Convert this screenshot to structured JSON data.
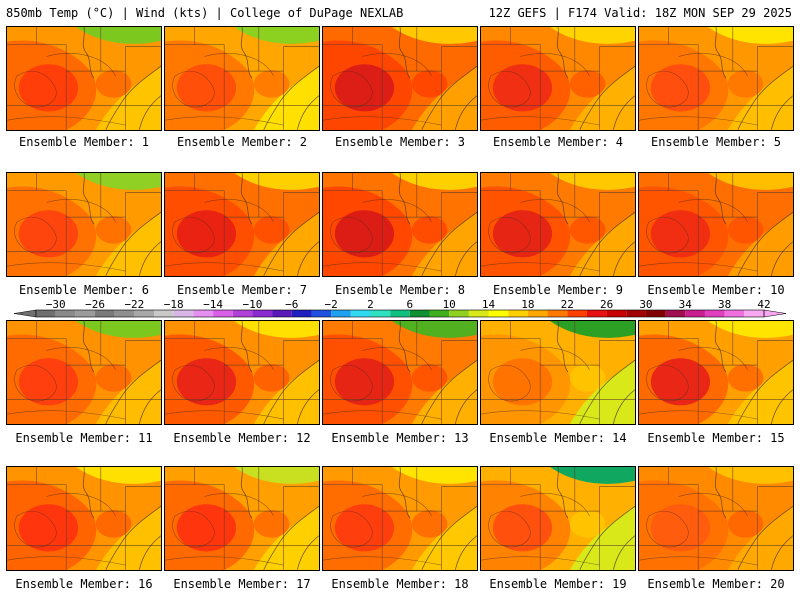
{
  "header": {
    "left": "850mb Temp (°C) | Wind (kts) | College of DuPage NEXLAB",
    "right": "12Z GEFS | F174 Valid: 18Z MON SEP 29 2025"
  },
  "colorbar": {
    "labels": [
      "−30",
      "−26",
      "−22",
      "−18",
      "−14",
      "−10",
      "−6",
      "−2",
      "2",
      "6",
      "10",
      "14",
      "18",
      "22",
      "26",
      "30",
      "34",
      "38",
      "42"
    ],
    "bins": [
      {
        "from": -32,
        "color": "#6f6f6f"
      },
      {
        "from": -30,
        "color": "#8a8a8a"
      },
      {
        "from": -28,
        "color": "#9c9c9c"
      },
      {
        "from": -26,
        "color": "#7a7a7a"
      },
      {
        "from": -24,
        "color": "#8f8f8f"
      },
      {
        "from": -22,
        "color": "#a8a8a8"
      },
      {
        "from": -20,
        "color": "#c8c8c8"
      },
      {
        "from": -18,
        "color": "#d9b8e8"
      },
      {
        "from": -16,
        "color": "#e68ff0"
      },
      {
        "from": -14,
        "color": "#d95fe8"
      },
      {
        "from": -12,
        "color": "#b040d8"
      },
      {
        "from": -10,
        "color": "#8a2ad0"
      },
      {
        "from": -8,
        "color": "#5a1ab8"
      },
      {
        "from": -6,
        "color": "#2020c0"
      },
      {
        "from": -4,
        "color": "#2050e0"
      },
      {
        "from": -2,
        "color": "#20a0f0"
      },
      {
        "from": 0,
        "color": "#30d8f0"
      },
      {
        "from": 2,
        "color": "#30e0c0"
      },
      {
        "from": 4,
        "color": "#10c080"
      },
      {
        "from": 6,
        "color": "#109030"
      },
      {
        "from": 8,
        "color": "#40b020"
      },
      {
        "from": 10,
        "color": "#90d020"
      },
      {
        "from": 12,
        "color": "#d8e818"
      },
      {
        "from": 14,
        "color": "#ffff00"
      },
      {
        "from": 16,
        "color": "#ffd000"
      },
      {
        "from": 18,
        "color": "#ffa800"
      },
      {
        "from": 20,
        "color": "#ff7800"
      },
      {
        "from": 22,
        "color": "#ff4000"
      },
      {
        "from": 24,
        "color": "#e81010"
      },
      {
        "from": 26,
        "color": "#c80000"
      },
      {
        "from": 28,
        "color": "#a00000"
      },
      {
        "from": 30,
        "color": "#800000"
      },
      {
        "from": 32,
        "color": "#a01050"
      },
      {
        "from": 34,
        "color": "#c82090"
      },
      {
        "from": 36,
        "color": "#e040c0"
      },
      {
        "from": 38,
        "color": "#f070e0"
      },
      {
        "from": 40,
        "color": "#f8a8f0"
      }
    ]
  },
  "members": [
    {
      "label": "Ensemble Member: 1",
      "colors": {
        "base": "#ff9800",
        "hot": "#ff3a0a",
        "warm": "#ff6200",
        "cool": "#ffc400",
        "cold": "#7cc81e",
        "alt": "#ff5200"
      }
    },
    {
      "label": "Ensemble Member: 2",
      "colors": {
        "base": "#ffa600",
        "hot": "#ff4a0a",
        "warm": "#ff7000",
        "cool": "#ffe000",
        "cold": "#8cd020",
        "alt": "#ff6000"
      }
    },
    {
      "label": "Ensemble Member: 3",
      "colors": {
        "base": "#ff6a00",
        "hot": "#d81a18",
        "warm": "#ff4000",
        "cool": "#ffa000",
        "cold": "#ffc800",
        "alt": "#ff3000"
      }
    },
    {
      "label": "Ensemble Member: 4",
      "colors": {
        "base": "#ff8800",
        "hot": "#f02a14",
        "warm": "#ff5500",
        "cool": "#ffb000",
        "cold": "#ffd400",
        "alt": "#ff4800"
      }
    },
    {
      "label": "Ensemble Member: 5",
      "colors": {
        "base": "#ff9800",
        "hot": "#ff4a10",
        "warm": "#ff7000",
        "cool": "#ffbe00",
        "cold": "#ffe400",
        "alt": "#ff6400"
      }
    },
    {
      "label": "Ensemble Member: 6",
      "colors": {
        "base": "#ff9a00",
        "hot": "#ff4010",
        "warm": "#ff6a00",
        "cool": "#ffc000",
        "cold": "#90d024",
        "alt": "#ff5800"
      }
    },
    {
      "label": "Ensemble Member: 7",
      "colors": {
        "base": "#ff7000",
        "hot": "#e81e14",
        "warm": "#ff4800",
        "cool": "#ffa800",
        "cold": "#ffd000",
        "alt": "#ff3a00"
      }
    },
    {
      "label": "Ensemble Member: 8",
      "colors": {
        "base": "#ff7400",
        "hot": "#d81818",
        "warm": "#ff4000",
        "cool": "#ffa400",
        "cold": "#ffd000",
        "alt": "#ff3200"
      }
    },
    {
      "label": "Ensemble Member: 9",
      "colors": {
        "base": "#ff7a00",
        "hot": "#e42016",
        "warm": "#ff4c00",
        "cool": "#ffa800",
        "cold": "#ffc800",
        "alt": "#ff4000"
      }
    },
    {
      "label": "Ensemble Member: 10",
      "colors": {
        "base": "#ff6e00",
        "hot": "#f02a14",
        "warm": "#ff5000",
        "cool": "#ff9c00",
        "cold": "#ffbe00",
        "alt": "#ff4400"
      }
    },
    {
      "label": "Ensemble Member: 11",
      "colors": {
        "base": "#ff9200",
        "hot": "#ff3c10",
        "warm": "#ff6400",
        "cool": "#ffbc00",
        "cold": "#7cc81e",
        "alt": "#ff5400"
      }
    },
    {
      "label": "Ensemble Member: 12",
      "colors": {
        "base": "#ff9000",
        "hot": "#e82018",
        "warm": "#ff5000",
        "cool": "#ffc000",
        "cold": "#ffe000",
        "alt": "#ff4400"
      }
    },
    {
      "label": "Ensemble Member: 13",
      "colors": {
        "base": "#ff7a00",
        "hot": "#e42016",
        "warm": "#ff4800",
        "cool": "#ffb000",
        "cold": "#50b020",
        "alt": "#ff3c00"
      }
    },
    {
      "label": "Ensemble Member: 14",
      "colors": {
        "base": "#ffb000",
        "hot": "#ff7000",
        "warm": "#ff9000",
        "cool": "#d8e818",
        "cold": "#2ca024",
        "alt": "#ffd000"
      }
    },
    {
      "label": "Ensemble Member: 15",
      "colors": {
        "base": "#ffa000",
        "hot": "#e82018",
        "warm": "#ff6000",
        "cool": "#ffc400",
        "cold": "#ffe400",
        "alt": "#ff5000"
      }
    },
    {
      "label": "Ensemble Member: 16",
      "colors": {
        "base": "#ff9400",
        "hot": "#ff3010",
        "warm": "#ff5c00",
        "cool": "#ffc000",
        "cold": "#ffe000",
        "alt": "#ff4a00"
      }
    },
    {
      "label": "Ensemble Member: 17",
      "colors": {
        "base": "#ffa000",
        "hot": "#ff3010",
        "warm": "#ff6000",
        "cool": "#ffd000",
        "cold": "#c8e020",
        "alt": "#ff5000"
      }
    },
    {
      "label": "Ensemble Member: 18",
      "colors": {
        "base": "#ff9a00",
        "hot": "#ff3a10",
        "warm": "#ff6400",
        "cool": "#ffc800",
        "cold": "#ffe400",
        "alt": "#ff5200"
      }
    },
    {
      "label": "Ensemble Member: 19",
      "colors": {
        "base": "#ffb000",
        "hot": "#ff4a10",
        "warm": "#ff7a00",
        "cool": "#d8e818",
        "cold": "#10a860",
        "alt": "#ffd000"
      }
    },
    {
      "label": "Ensemble Member: 20",
      "colors": {
        "base": "#ff8a00",
        "hot": "#ff5a10",
        "warm": "#ff6c00",
        "cool": "#ffa800",
        "cold": "#ffc000",
        "alt": "#ff5000"
      }
    }
  ]
}
